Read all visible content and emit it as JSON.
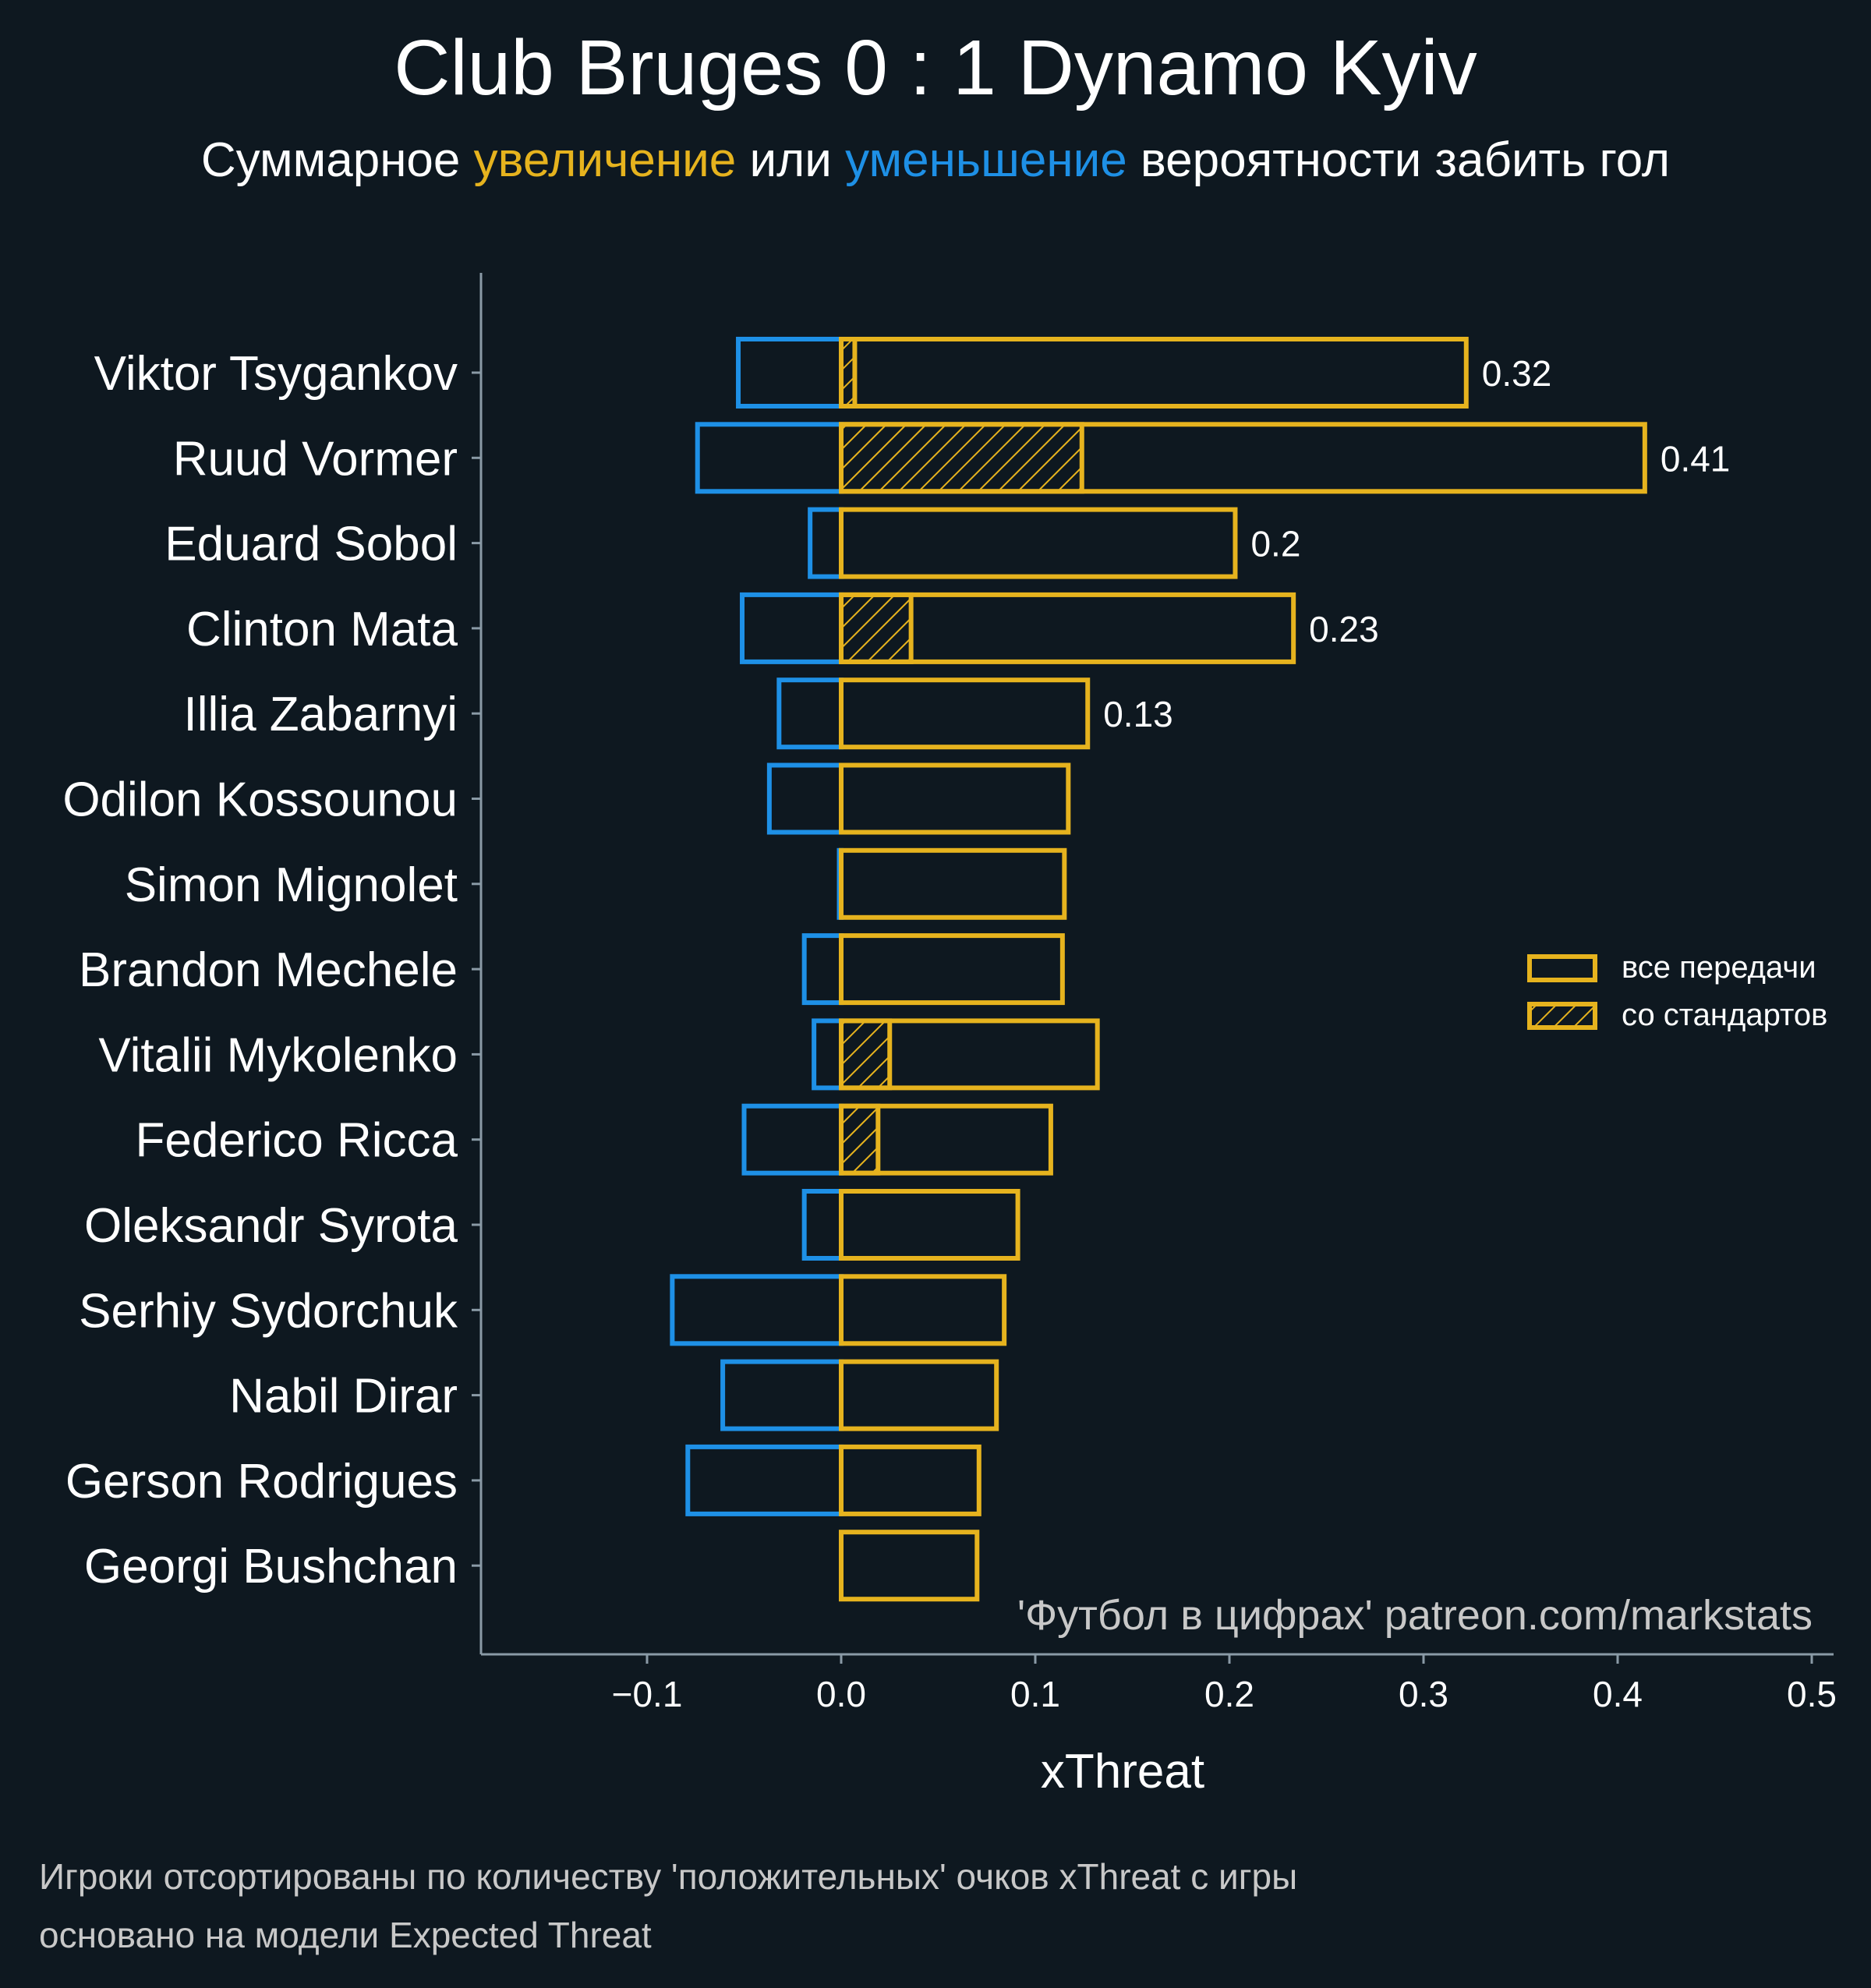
{
  "title": "Club Bruges 0 : 1 Dynamo Kyiv",
  "subtitle": {
    "prefix": "Суммарное ",
    "increase": "увеличение",
    "middle": " или ",
    "decrease": "уменьшение",
    "suffix": " вероятности забить гол"
  },
  "watermark": "'Футбол в цифрах' patreon.com/markstats",
  "footnotes": [
    "Игроки отсортированы по количеству 'положительных' очков xThreat с игры",
    "основано на модели Expected Threat"
  ],
  "colors": {
    "background": "#0e1820",
    "positive": "#e6b31e",
    "negative": "#1e90e6",
    "axis": "#8a9aa6",
    "text": "#ffffff",
    "muted": "#c8c8c8"
  },
  "chart_data": {
    "type": "bar",
    "orientation": "horizontal",
    "xlabel": "xThreat",
    "xlim": [
      -0.185,
      0.515
    ],
    "xticks": [
      -0.1,
      0.0,
      0.1,
      0.2,
      0.3,
      0.4,
      0.5
    ],
    "xtick_labels": [
      "−0.1",
      "0.0",
      "0.1",
      "0.2",
      "0.3",
      "0.4",
      "0.5"
    ],
    "legend": {
      "position": "right",
      "entries": [
        "все передачи",
        "со стандартов"
      ]
    },
    "categories": [
      "Viktor Tsygankov",
      "Ruud Vormer",
      "Eduard Sobol",
      "Clinton Mata",
      "Illia Zabarnyi",
      "Odilon Kossounou",
      "Simon Mignolet",
      "Brandon Mechele",
      "Vitalii Mykolenko",
      "Federico Ricca",
      "Oleksandr Syrota",
      "Serhiy Sydorchuk",
      "Nabil Dirar",
      "Gerson Rodrigues",
      "Georgi Bushchan"
    ],
    "series": [
      {
        "name": "все передачи (увеличение)",
        "values": [
          0.322,
          0.414,
          0.203,
          0.233,
          0.127,
          0.117,
          0.115,
          0.114,
          0.132,
          0.108,
          0.091,
          0.084,
          0.08,
          0.071,
          0.07
        ]
      },
      {
        "name": "со стандартов (увеличение)",
        "values": [
          0.007,
          0.124,
          0.0,
          0.036,
          0.0,
          0.0,
          0.0,
          0.0,
          0.025,
          0.019,
          0.0,
          0.0,
          0.0,
          0.0,
          0.0
        ]
      },
      {
        "name": "все передачи (уменьшение)",
        "values": [
          -0.053,
          -0.074,
          -0.016,
          -0.051,
          -0.032,
          -0.037,
          -0.001,
          -0.019,
          -0.014,
          -0.05,
          -0.019,
          -0.087,
          -0.061,
          -0.079,
          0.0
        ]
      }
    ],
    "value_labels": [
      "0.32",
      "0.41",
      "0.2",
      "0.23",
      "0.13",
      "",
      "",
      "",
      "",
      "",
      "",
      "",
      "",
      "",
      ""
    ]
  }
}
